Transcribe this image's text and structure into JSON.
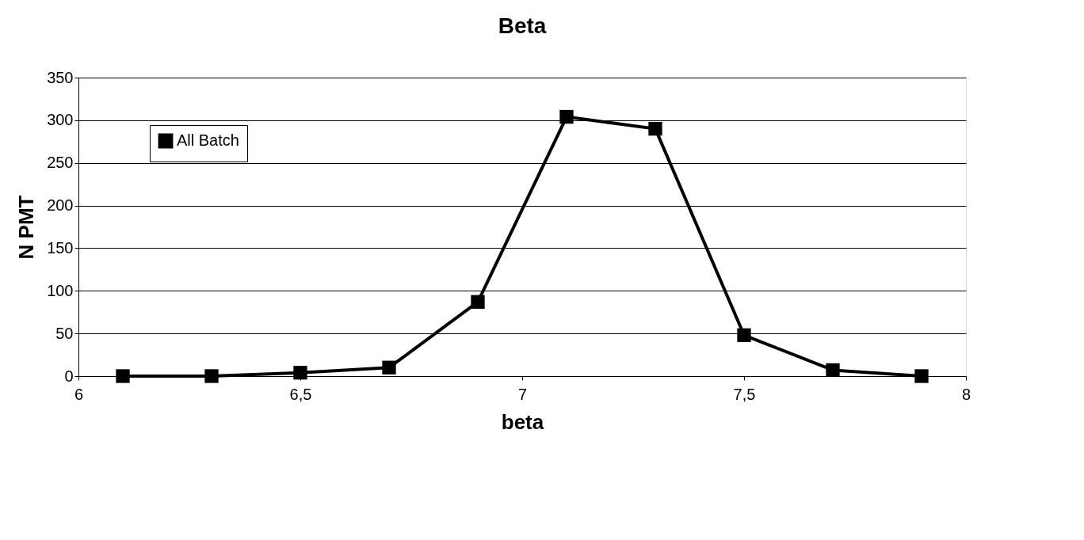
{
  "chart_data": {
    "type": "line",
    "title": "Beta",
    "xlabel": "beta",
    "ylabel": "N PMT",
    "x": [
      6.1,
      6.3,
      6.5,
      6.7,
      6.9,
      7.1,
      7.3,
      7.5,
      7.7,
      7.9
    ],
    "series": [
      {
        "name": "All Batch",
        "color": "#000000",
        "values": [
          0,
          0,
          4,
          10,
          87,
          304,
          290,
          48,
          7,
          0
        ]
      }
    ],
    "xlim": [
      6,
      8
    ],
    "xticks": [
      6,
      {
        "value": 6.5,
        "label": "6,5"
      },
      7,
      {
        "value": 7.5,
        "label": "7,5"
      },
      8
    ],
    "ylim": [
      0,
      350
    ],
    "yticks": [
      0,
      50,
      100,
      150,
      200,
      250,
      300,
      350
    ],
    "grid": "y",
    "legend": "top left",
    "marker": "square",
    "line_style": "solid"
  }
}
